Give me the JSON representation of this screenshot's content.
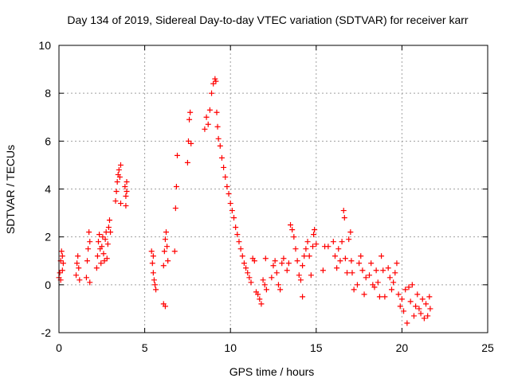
{
  "chart_data": {
    "type": "scatter",
    "title": "Day 134 of 2019, Sidereal Day-to-day VTEC variation (SDTVAR) for receiver karr",
    "xlabel": "GPS time / hours",
    "ylabel": "SDTVAR / TECUs",
    "xlim": [
      0,
      25
    ],
    "ylim": [
      -2,
      10
    ],
    "xticks": [
      0,
      5,
      10,
      15,
      20,
      25
    ],
    "yticks": [
      -2,
      0,
      2,
      4,
      6,
      8,
      10
    ],
    "grid": true,
    "marker": "+",
    "color": "#ff0000",
    "series": [
      {
        "name": "SDTVAR",
        "points": [
          [
            0.0,
            0.3
          ],
          [
            0.05,
            0.5
          ],
          [
            0.1,
            1.0
          ],
          [
            0.1,
            0.2
          ],
          [
            0.15,
            1.4
          ],
          [
            0.2,
            1.2
          ],
          [
            0.2,
            0.6
          ],
          [
            0.25,
            0.9
          ],
          [
            1.0,
            0.4
          ],
          [
            1.05,
            0.9
          ],
          [
            1.1,
            1.2
          ],
          [
            1.15,
            0.7
          ],
          [
            1.2,
            0.2
          ],
          [
            1.6,
            0.3
          ],
          [
            1.65,
            1.0
          ],
          [
            1.7,
            1.5
          ],
          [
            1.75,
            2.2
          ],
          [
            1.8,
            1.8
          ],
          [
            1.8,
            0.1
          ],
          [
            2.2,
            0.7
          ],
          [
            2.25,
            1.2
          ],
          [
            2.3,
            1.8
          ],
          [
            2.35,
            2.1
          ],
          [
            2.4,
            1.5
          ],
          [
            2.45,
            0.9
          ],
          [
            2.5,
            1.6
          ],
          [
            2.55,
            2.0
          ],
          [
            2.6,
            1.3
          ],
          [
            2.65,
            1.0
          ],
          [
            2.7,
            1.9
          ],
          [
            2.75,
            2.2
          ],
          [
            2.8,
            1.1
          ],
          [
            2.85,
            1.7
          ],
          [
            2.9,
            2.4
          ],
          [
            2.95,
            2.7
          ],
          [
            3.0,
            2.2
          ],
          [
            3.3,
            3.5
          ],
          [
            3.35,
            3.9
          ],
          [
            3.4,
            4.3
          ],
          [
            3.45,
            4.6
          ],
          [
            3.5,
            4.8
          ],
          [
            3.55,
            4.5
          ],
          [
            3.6,
            5.0
          ],
          [
            3.6,
            3.4
          ],
          [
            3.85,
            4.1
          ],
          [
            3.9,
            3.7
          ],
          [
            3.95,
            3.9
          ],
          [
            3.95,
            4.3
          ],
          [
            3.9,
            3.3
          ],
          [
            5.4,
            1.4
          ],
          [
            5.45,
            0.9
          ],
          [
            5.5,
            1.2
          ],
          [
            5.5,
            0.5
          ],
          [
            5.55,
            0.2
          ],
          [
            5.6,
            0.0
          ],
          [
            5.65,
            -0.2
          ],
          [
            6.1,
            0.8
          ],
          [
            6.15,
            1.4
          ],
          [
            6.2,
            1.9
          ],
          [
            6.25,
            2.2
          ],
          [
            6.3,
            1.6
          ],
          [
            6.35,
            1.0
          ],
          [
            6.1,
            -0.8
          ],
          [
            6.2,
            -0.9
          ],
          [
            6.75,
            1.4
          ],
          [
            6.8,
            3.2
          ],
          [
            6.85,
            4.1
          ],
          [
            6.9,
            5.4
          ],
          [
            7.5,
            5.1
          ],
          [
            7.55,
            6.0
          ],
          [
            7.6,
            6.9
          ],
          [
            7.65,
            7.2
          ],
          [
            7.7,
            5.9
          ],
          [
            8.5,
            6.5
          ],
          [
            8.6,
            7.0
          ],
          [
            8.7,
            6.7
          ],
          [
            8.8,
            7.3
          ],
          [
            8.9,
            8.0
          ],
          [
            9.0,
            8.4
          ],
          [
            9.1,
            8.6
          ],
          [
            9.15,
            8.5
          ],
          [
            9.2,
            7.2
          ],
          [
            9.25,
            6.6
          ],
          [
            9.3,
            6.1
          ],
          [
            9.4,
            5.8
          ],
          [
            9.5,
            5.3
          ],
          [
            9.6,
            4.9
          ],
          [
            9.7,
            4.5
          ],
          [
            9.8,
            4.1
          ],
          [
            9.9,
            3.8
          ],
          [
            10.0,
            3.4
          ],
          [
            10.1,
            3.1
          ],
          [
            10.2,
            2.8
          ],
          [
            10.3,
            2.4
          ],
          [
            10.4,
            2.1
          ],
          [
            10.5,
            1.8
          ],
          [
            10.6,
            1.5
          ],
          [
            10.7,
            1.2
          ],
          [
            10.8,
            0.9
          ],
          [
            10.9,
            0.7
          ],
          [
            11.0,
            0.5
          ],
          [
            11.1,
            0.3
          ],
          [
            11.2,
            0.1
          ],
          [
            11.3,
            1.1
          ],
          [
            11.4,
            1.0
          ],
          [
            11.5,
            -0.3
          ],
          [
            11.6,
            -0.4
          ],
          [
            11.7,
            -0.6
          ],
          [
            11.8,
            -0.8
          ],
          [
            11.9,
            0.2
          ],
          [
            12.0,
            0.0
          ],
          [
            12.05,
            1.1
          ],
          [
            12.1,
            -0.2
          ],
          [
            12.4,
            0.3
          ],
          [
            12.5,
            0.8
          ],
          [
            12.6,
            1.0
          ],
          [
            12.7,
            0.5
          ],
          [
            12.8,
            0.0
          ],
          [
            12.9,
            -0.2
          ],
          [
            13.0,
            0.9
          ],
          [
            13.1,
            1.1
          ],
          [
            13.3,
            0.6
          ],
          [
            13.4,
            0.9
          ],
          [
            13.5,
            2.5
          ],
          [
            13.6,
            2.3
          ],
          [
            13.7,
            2.0
          ],
          [
            13.8,
            1.5
          ],
          [
            13.9,
            1.0
          ],
          [
            14.0,
            0.4
          ],
          [
            14.1,
            0.2
          ],
          [
            14.2,
            -0.5
          ],
          [
            14.2,
            0.8
          ],
          [
            14.3,
            1.2
          ],
          [
            14.4,
            1.5
          ],
          [
            14.5,
            1.8
          ],
          [
            14.6,
            1.2
          ],
          [
            14.7,
            0.4
          ],
          [
            14.8,
            1.6
          ],
          [
            14.85,
            2.1
          ],
          [
            14.9,
            2.3
          ],
          [
            15.0,
            1.7
          ],
          [
            15.4,
            0.6
          ],
          [
            15.5,
            1.6
          ],
          [
            15.7,
            1.6
          ],
          [
            16.0,
            1.8
          ],
          [
            16.1,
            1.2
          ],
          [
            16.2,
            0.7
          ],
          [
            16.3,
            1.5
          ],
          [
            16.4,
            1.0
          ],
          [
            16.5,
            1.8
          ],
          [
            16.6,
            3.1
          ],
          [
            16.65,
            2.8
          ],
          [
            16.7,
            1.1
          ],
          [
            16.8,
            0.5
          ],
          [
            16.9,
            1.9
          ],
          [
            17.0,
            2.2
          ],
          [
            17.05,
            1.0
          ],
          [
            17.1,
            0.5
          ],
          [
            17.2,
            -0.2
          ],
          [
            17.4,
            0.0
          ],
          [
            17.5,
            0.9
          ],
          [
            17.6,
            1.2
          ],
          [
            17.7,
            0.6
          ],
          [
            17.8,
            -0.4
          ],
          [
            17.9,
            0.3
          ],
          [
            18.1,
            0.4
          ],
          [
            18.2,
            0.9
          ],
          [
            18.3,
            0.0
          ],
          [
            18.4,
            -0.1
          ],
          [
            18.5,
            0.6
          ],
          [
            18.6,
            0.1
          ],
          [
            18.7,
            -0.5
          ],
          [
            18.8,
            1.2
          ],
          [
            18.9,
            0.6
          ],
          [
            19.0,
            -0.5
          ],
          [
            19.2,
            0.7
          ],
          [
            19.3,
            0.3
          ],
          [
            19.4,
            -0.2
          ],
          [
            19.5,
            0.1
          ],
          [
            19.6,
            0.5
          ],
          [
            19.7,
            0.9
          ],
          [
            19.8,
            -0.4
          ],
          [
            19.9,
            -0.9
          ],
          [
            20.0,
            -0.6
          ],
          [
            20.1,
            -1.1
          ],
          [
            20.2,
            -0.2
          ],
          [
            20.3,
            -1.6
          ],
          [
            20.4,
            -0.1
          ],
          [
            20.5,
            -0.7
          ],
          [
            20.6,
            0.0
          ],
          [
            20.7,
            -1.3
          ],
          [
            20.8,
            -0.9
          ],
          [
            20.9,
            -0.4
          ],
          [
            21.0,
            -1.0
          ],
          [
            21.1,
            -1.2
          ],
          [
            21.2,
            -0.6
          ],
          [
            21.3,
            -1.4
          ],
          [
            21.4,
            -0.8
          ],
          [
            21.5,
            -1.3
          ],
          [
            21.6,
            -0.5
          ],
          [
            21.65,
            -1.0
          ]
        ]
      }
    ]
  }
}
